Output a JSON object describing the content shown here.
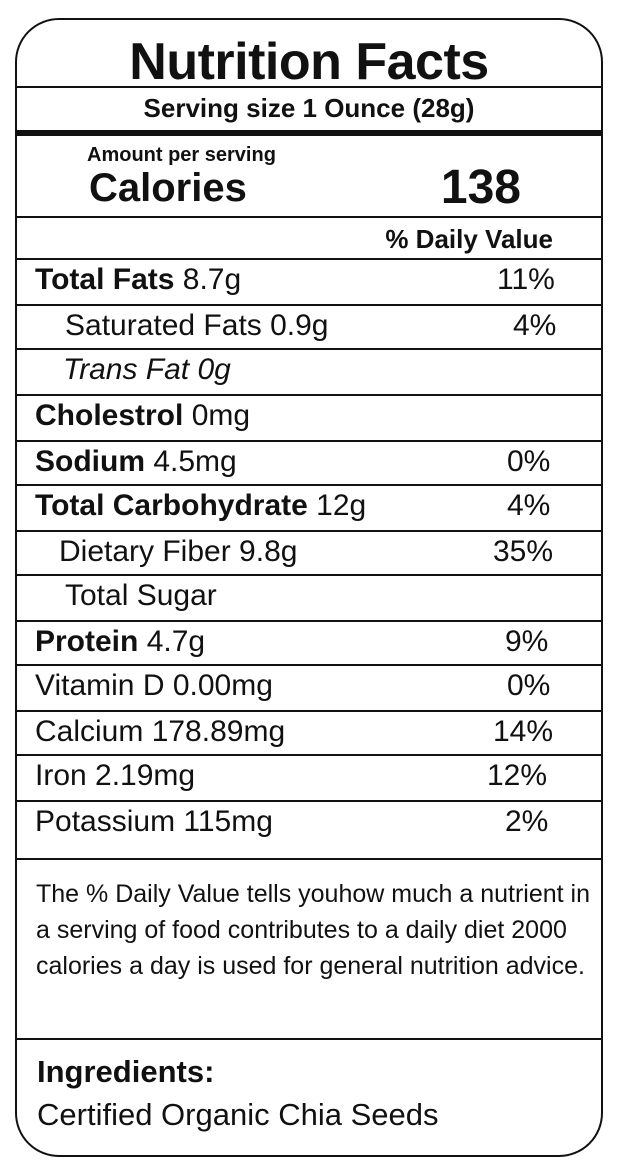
{
  "title": "Nutrition Facts",
  "serving_size": "Serving size 1 Ounce (28g)",
  "amount_per_serving": "Amount per serving",
  "calories_label": "Calories",
  "calories_value": "138",
  "daily_value_header": "% Daily Value",
  "nutrients": [
    {
      "bold": "Total Fats",
      "rest": " 8.7g",
      "dv": "11%"
    },
    {
      "bold": "",
      "rest": "Saturated Fats 0.9g",
      "dv": "4%"
    },
    {
      "bold": "",
      "rest": "Trans Fat 0g",
      "dv": ""
    },
    {
      "bold": "Cholestrol",
      "rest": " 0mg",
      "dv": ""
    },
    {
      "bold": "Sodium",
      "rest": " 4.5mg",
      "dv": "0%"
    },
    {
      "bold": "Total Carbohydrate",
      "rest": " 12g",
      "dv": "4%"
    },
    {
      "bold": "",
      "rest": "Dietary Fiber 9.8g",
      "dv": "35%"
    },
    {
      "bold": "",
      "rest": "Total Sugar",
      "dv": ""
    },
    {
      "bold": "Protein",
      "rest": " 4.7g",
      "dv": "9%"
    },
    {
      "bold": "",
      "rest": "Vitamin D 0.00mg",
      "dv": "0%"
    },
    {
      "bold": "",
      "rest": "Calcium 178.89mg",
      "dv": "14%"
    },
    {
      "bold": "",
      "rest": "Iron 2.19mg",
      "dv": "12%"
    },
    {
      "bold": "",
      "rest": "Potassium 115mg",
      "dv": "2%"
    }
  ],
  "footnote": "The % Daily Value tells youhow much a nutrient in a serving of food contributes to a daily diet 2000 calories a day is used for general nutrition advice.",
  "ingredients_title": "Ingredients:",
  "ingredients_text": "Certified Organic Chia Seeds"
}
